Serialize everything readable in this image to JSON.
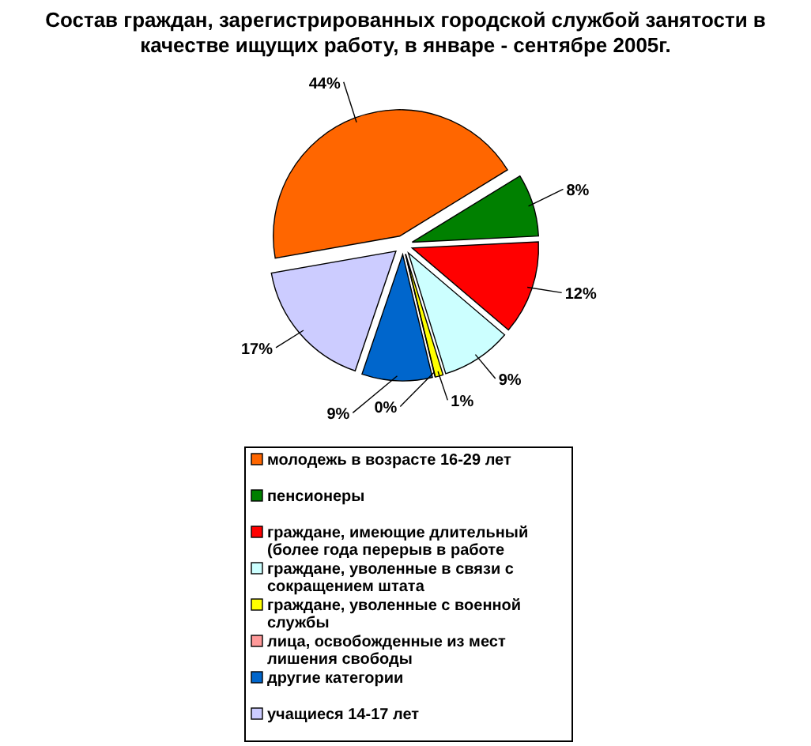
{
  "chart_data": {
    "type": "pie",
    "title": "Состав граждан, зарегистрированных городской службой занятости в качестве ищущих работу, в январе - сентябре 2005г.",
    "categories": [
      "молодежь в возрасте 16-29 лет",
      "пенсионеры",
      "граждане, имеющие длительный (более года перерыв в работе",
      "граждане, уволенные в связи с сокращением штата",
      "граждане, уволенные с военной службы",
      "лица, освобожденные из мест лишения свободы",
      "другие категории",
      "учащиеся 14-17 лет"
    ],
    "values": [
      44,
      8,
      12,
      9,
      1,
      0,
      9,
      17
    ],
    "colors": [
      "#ff6600",
      "#008000",
      "#ff0000",
      "#ccffff",
      "#ffff00",
      "#ff9999",
      "#0066cc",
      "#ccccff"
    ],
    "value_labels": [
      "44%",
      "8%",
      "12%",
      "9%",
      "1%",
      "0%",
      "9%",
      "17%"
    ],
    "legend": "bottom"
  }
}
